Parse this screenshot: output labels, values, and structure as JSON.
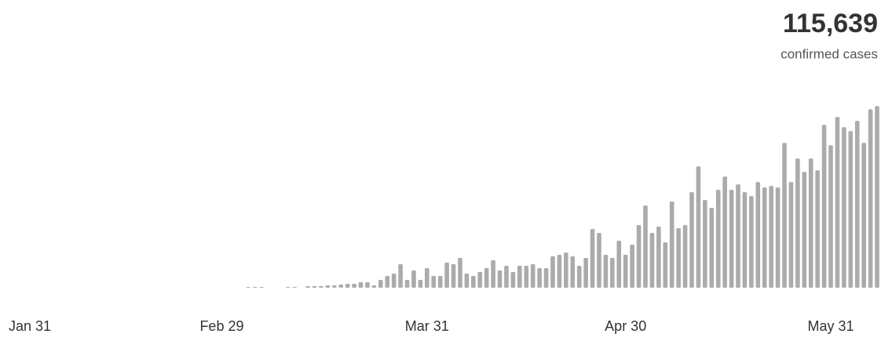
{
  "chart_data": {
    "type": "bar",
    "title": "115,639",
    "subtitle": "confirmed cases",
    "color": "#ababab",
    "categories": [
      "Jan 31",
      null,
      null,
      null,
      null,
      null,
      null,
      null,
      null,
      null,
      null,
      null,
      null,
      null,
      null,
      null,
      null,
      null,
      null,
      null,
      null,
      null,
      null,
      null,
      null,
      null,
      null,
      null,
      null,
      "Feb 29",
      null,
      null,
      null,
      null,
      null,
      null,
      null,
      null,
      null,
      null,
      null,
      null,
      null,
      null,
      null,
      null,
      null,
      null,
      null,
      null,
      null,
      null,
      null,
      null,
      null,
      null,
      null,
      null,
      null,
      null,
      "Mar 31",
      null,
      null,
      null,
      null,
      null,
      null,
      null,
      null,
      null,
      null,
      null,
      null,
      null,
      null,
      null,
      null,
      null,
      null,
      null,
      null,
      null,
      null,
      null,
      null,
      null,
      null,
      null,
      null,
      null,
      "Apr 30",
      null,
      null,
      null,
      null,
      null,
      null,
      null,
      null,
      null,
      null,
      null,
      null,
      null,
      null,
      null,
      null,
      null,
      null,
      null,
      null,
      null,
      null,
      null,
      null,
      null,
      null,
      null,
      null,
      null,
      null,
      "May 31",
      null,
      null,
      null,
      null,
      null,
      null,
      null
    ],
    "values": [
      0,
      0,
      0,
      0,
      0,
      0,
      0,
      0,
      0,
      0,
      0,
      0,
      0,
      0,
      0,
      0,
      0,
      0,
      0,
      0,
      0,
      0,
      0,
      0,
      0,
      0,
      0,
      0,
      0,
      0,
      0,
      0,
      0,
      15,
      15,
      15,
      0,
      0,
      0,
      15,
      15,
      0,
      30,
      30,
      30,
      45,
      45,
      60,
      75,
      75,
      105,
      105,
      45,
      150,
      225,
      270,
      450,
      150,
      330,
      150,
      375,
      225,
      225,
      480,
      450,
      570,
      270,
      225,
      300,
      375,
      525,
      330,
      420,
      300,
      420,
      420,
      450,
      375,
      375,
      600,
      630,
      675,
      600,
      420,
      570,
      1125,
      1050,
      630,
      570,
      900,
      630,
      825,
      1200,
      1575,
      1050,
      1170,
      870,
      1650,
      1140,
      1200,
      1830,
      2325,
      1680,
      1530,
      1875,
      2130,
      1875,
      1980,
      1830,
      1755,
      2025,
      1920,
      1950,
      1920,
      2775,
      2025,
      2475,
      2220,
      2475,
      2250,
      3120,
      2730,
      3270,
      3075,
      3000,
      3195,
      2775,
      3420,
      3480
    ],
    "ylim": [
      0,
      3500
    ]
  }
}
